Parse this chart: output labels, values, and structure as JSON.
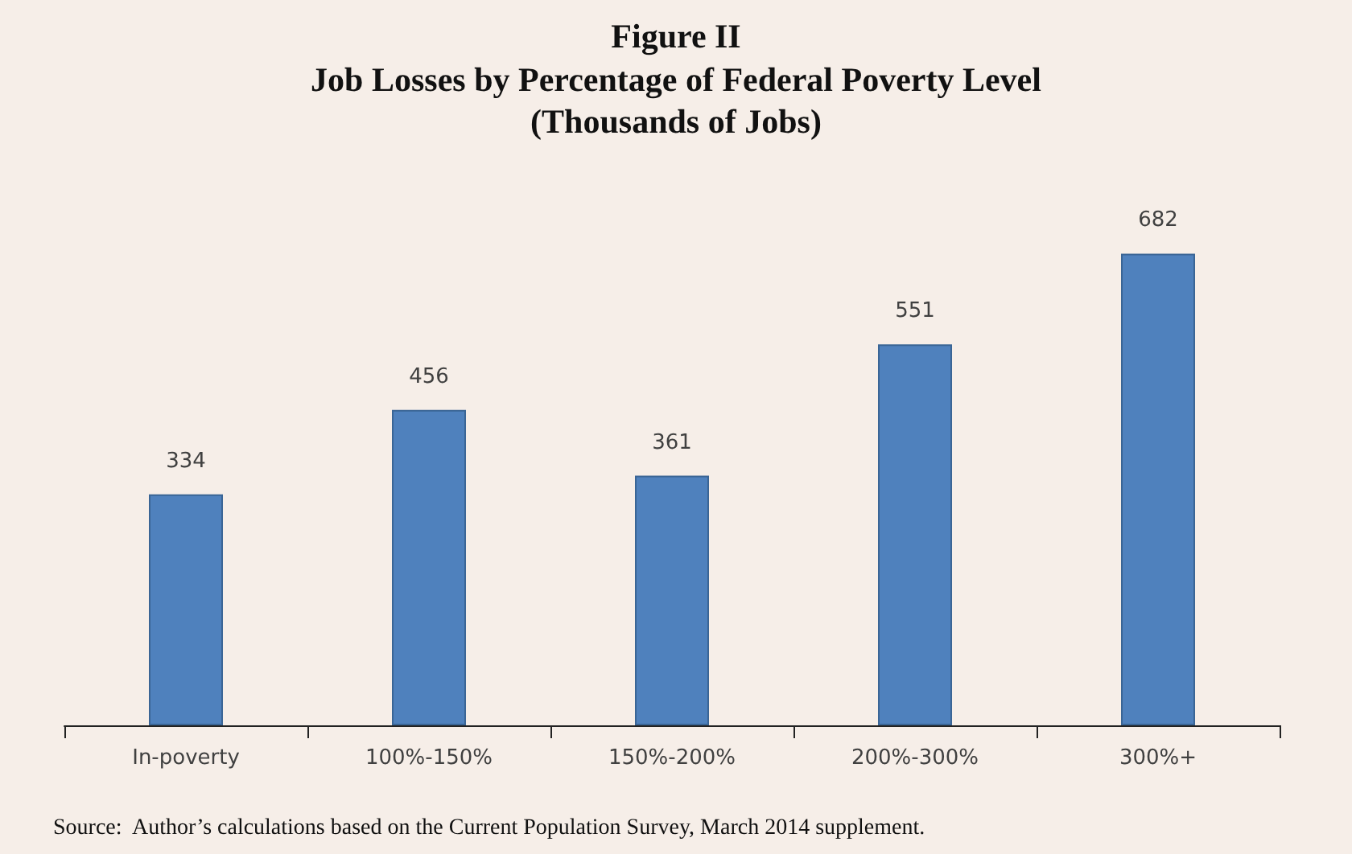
{
  "chart_data": {
    "type": "bar",
    "title": "Figure II\nJob Losses by Percentage of Federal Poverty Level",
    "subtitle": "(Thousands of Jobs)",
    "categories": [
      "In-poverty",
      "100%-150%",
      "150%-200%",
      "200%-300%",
      "300%+"
    ],
    "values": [
      334,
      456,
      361,
      551,
      682
    ],
    "color": "#4f81bd",
    "data_labels": true,
    "annotations": [
      "Source:  Author’s calculations based on the Current Population Survey, March 2014 supplement."
    ]
  }
}
